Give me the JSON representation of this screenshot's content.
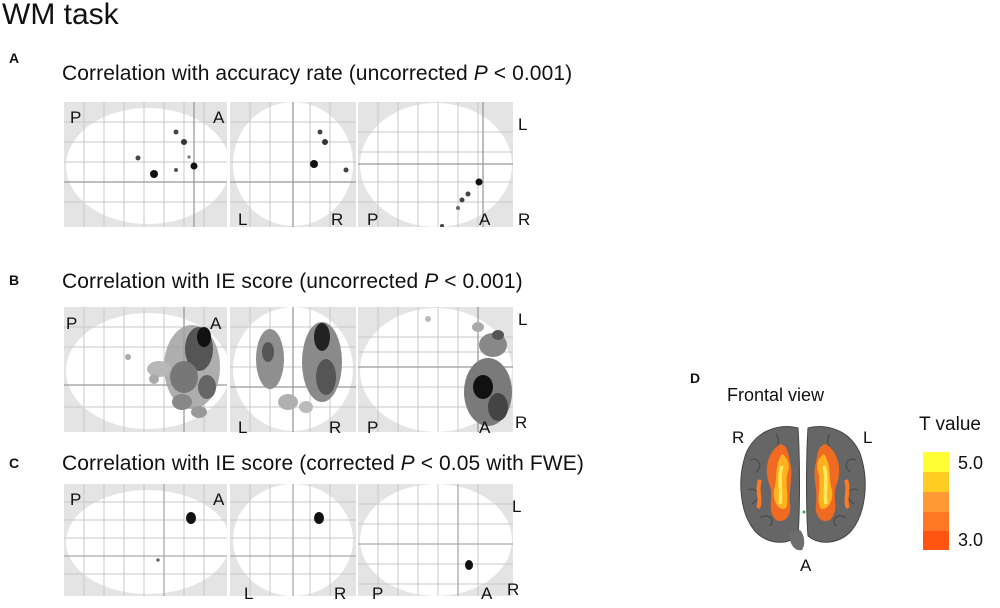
{
  "figure_title": "WM task",
  "panels": [
    {
      "letter": "A",
      "title_before": "Correlation with accuracy rate (uncorrected ",
      "title_p": "P",
      "title_after": " < 0.001)",
      "sagittal_labels": [
        "P",
        "A"
      ],
      "coronal_labels": [
        "L",
        "R"
      ],
      "axial_labels": [
        "L",
        "P",
        "A",
        "R"
      ]
    },
    {
      "letter": "B",
      "title_before": "Correlation with IE score (uncorrected ",
      "title_p": "P",
      "title_after": " < 0.001)",
      "sagittal_labels": [
        "P",
        "A"
      ],
      "coronal_labels": [
        "L",
        "R"
      ],
      "axial_labels": [
        "L",
        "P",
        "A",
        "R"
      ]
    },
    {
      "letter": "C",
      "title_before": "Correlation with IE score (corrected ",
      "title_p": "P",
      "title_after": " < 0.05 with FWE)",
      "sagittal_labels": [
        "P",
        "A"
      ],
      "coronal_labels": [
        "L",
        "R"
      ],
      "axial_labels": [
        "L",
        "P",
        "A",
        "R"
      ]
    }
  ],
  "panel_d": {
    "letter": "D",
    "title": "Frontal view",
    "labels": [
      "R",
      "L",
      "A"
    ],
    "legend_title": "T value",
    "legend_max": "5.0",
    "legend_min": "3.0",
    "colors": [
      "#ffff33",
      "#ffcc22",
      "#ff9933",
      "#ff7722",
      "#ff5511"
    ]
  }
}
